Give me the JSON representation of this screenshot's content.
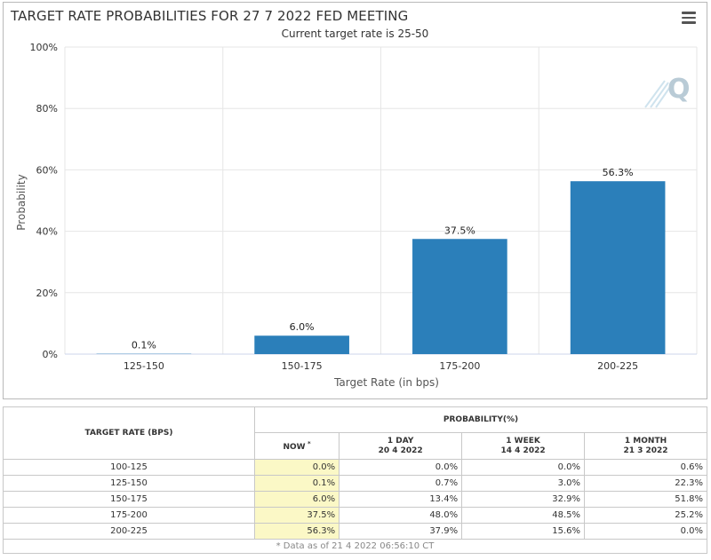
{
  "chart": {
    "title": "TARGET RATE PROBABILITIES FOR 27 7 2022 FED MEETING",
    "subtitle": "Current target rate is 25-50",
    "menu_icon": "hamburger-menu-icon",
    "watermark_icon": "q-logo-icon",
    "watermark_letter": "Q"
  },
  "chart_data": {
    "type": "bar",
    "categories": [
      "125-150",
      "150-175",
      "175-200",
      "200-225"
    ],
    "values": [
      0.1,
      6.0,
      37.5,
      56.3
    ],
    "data_labels": [
      "0.1%",
      "6.0%",
      "37.5%",
      "56.3%"
    ],
    "title": "TARGET RATE PROBABILITIES FOR 27 7 2022 FED MEETING",
    "subtitle": "Current target rate is 25-50",
    "xlabel": "Target Rate (in bps)",
    "ylabel": "Probability",
    "ylim": [
      0,
      100
    ],
    "yticks": [
      0,
      20,
      40,
      60,
      80,
      100
    ],
    "ytick_labels": [
      "0%",
      "20%",
      "40%",
      "60%",
      "80%",
      "100%"
    ],
    "bar_color": "#2b7fba",
    "grid": true,
    "legend": "none"
  },
  "table": {
    "rate_header": "TARGET RATE (BPS)",
    "prob_header": "PROBABILITY(%)",
    "columns": [
      {
        "label": "NOW",
        "sub": "",
        "marker": "*"
      },
      {
        "label": "1 DAY",
        "sub": "20 4 2022",
        "marker": ""
      },
      {
        "label": "1 WEEK",
        "sub": "14 4 2022",
        "marker": ""
      },
      {
        "label": "1 MONTH",
        "sub": "21 3 2022",
        "marker": ""
      }
    ],
    "rows": [
      {
        "rate": "100-125",
        "values": [
          "0.0%",
          "0.0%",
          "0.0%",
          "0.6%"
        ]
      },
      {
        "rate": "125-150",
        "values": [
          "0.1%",
          "0.7%",
          "3.0%",
          "22.3%"
        ]
      },
      {
        "rate": "150-175",
        "values": [
          "6.0%",
          "13.4%",
          "32.9%",
          "51.8%"
        ]
      },
      {
        "rate": "175-200",
        "values": [
          "37.5%",
          "48.0%",
          "48.5%",
          "25.2%"
        ]
      },
      {
        "rate": "200-225",
        "values": [
          "56.3%",
          "37.9%",
          "15.6%",
          "0.0%"
        ]
      }
    ],
    "footnote": "* Data as of 21 4 2022 06:56:10 CT",
    "now_highlight_color": "#fbf8c6"
  }
}
